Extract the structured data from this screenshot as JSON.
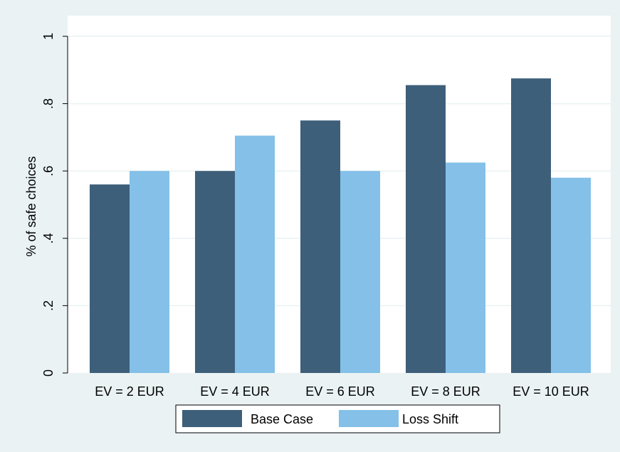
{
  "chart_data": {
    "type": "bar",
    "categories": [
      "EV = 2 EUR",
      "EV = 4 EUR",
      "EV = 6 EUR",
      "EV = 8 EUR",
      "EV = 10 EUR"
    ],
    "series": [
      {
        "name": "Base Case",
        "values": [
          0.56,
          0.6,
          0.75,
          0.855,
          0.875
        ]
      },
      {
        "name": "Loss Shift",
        "values": [
          0.6,
          0.705,
          0.6,
          0.625,
          0.58
        ]
      }
    ],
    "ylabel": "% of safe choices",
    "xlabel": "",
    "ylim": [
      0,
      1
    ],
    "yticks": [
      {
        "value": 0,
        "label": "0"
      },
      {
        "value": 0.2,
        "label": ".2"
      },
      {
        "value": 0.4,
        "label": ".4"
      },
      {
        "value": 0.6,
        "label": ".6"
      },
      {
        "value": 0.8,
        "label": ".8"
      },
      {
        "value": 1,
        "label": "1"
      }
    ],
    "grid": true,
    "legend_position": "bottom",
    "colors": {
      "series": [
        "#3e5f7a",
        "#84c0e8"
      ],
      "outer_background": "#eaf2f3",
      "plot_background": "#ffffff",
      "gridline": "#eaf2f3",
      "axis": "#000000"
    }
  }
}
